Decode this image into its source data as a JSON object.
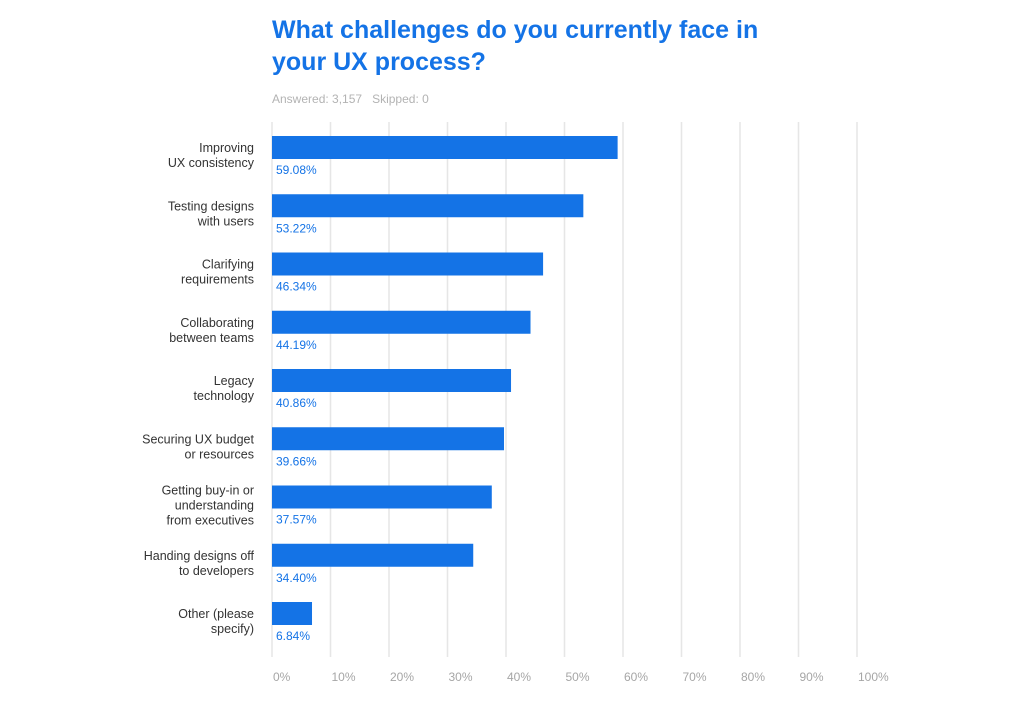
{
  "header": {
    "title": "What challenges do you currently face in your UX process?",
    "answered_label": "Answered: 3,157",
    "skipped_label": "Skipped: 0"
  },
  "chart_data": {
    "type": "bar",
    "orientation": "horizontal",
    "title": "What challenges do you currently face in your UX process?",
    "categories": [
      [
        "Improving",
        "UX consistency"
      ],
      [
        "Testing designs",
        "with users"
      ],
      [
        "Clarifying",
        "requirements"
      ],
      [
        "Collaborating",
        "between teams"
      ],
      [
        "Legacy",
        "technology"
      ],
      [
        "Securing UX budget",
        "or resources"
      ],
      [
        "Getting buy-in or",
        "understanding",
        "from executives"
      ],
      [
        "Handing designs off",
        "to developers"
      ],
      [
        "Other (please",
        "specify)"
      ]
    ],
    "values": [
      59.08,
      53.22,
      46.34,
      44.19,
      40.86,
      39.66,
      37.57,
      34.4,
      6.84
    ],
    "value_labels": [
      "59.08%",
      "53.22%",
      "46.34%",
      "44.19%",
      "40.86%",
      "39.66%",
      "37.57%",
      "34.40%",
      "6.84%"
    ],
    "xlim": [
      0,
      100
    ],
    "x_ticks": [
      "0%",
      "10%",
      "20%",
      "30%",
      "40%",
      "50%",
      "60%",
      "70%",
      "80%",
      "90%",
      "100%"
    ],
    "grid": true,
    "bar_color": "#1473e6",
    "grid_color": "#e6e6e6",
    "xlabel": "",
    "ylabel": ""
  }
}
